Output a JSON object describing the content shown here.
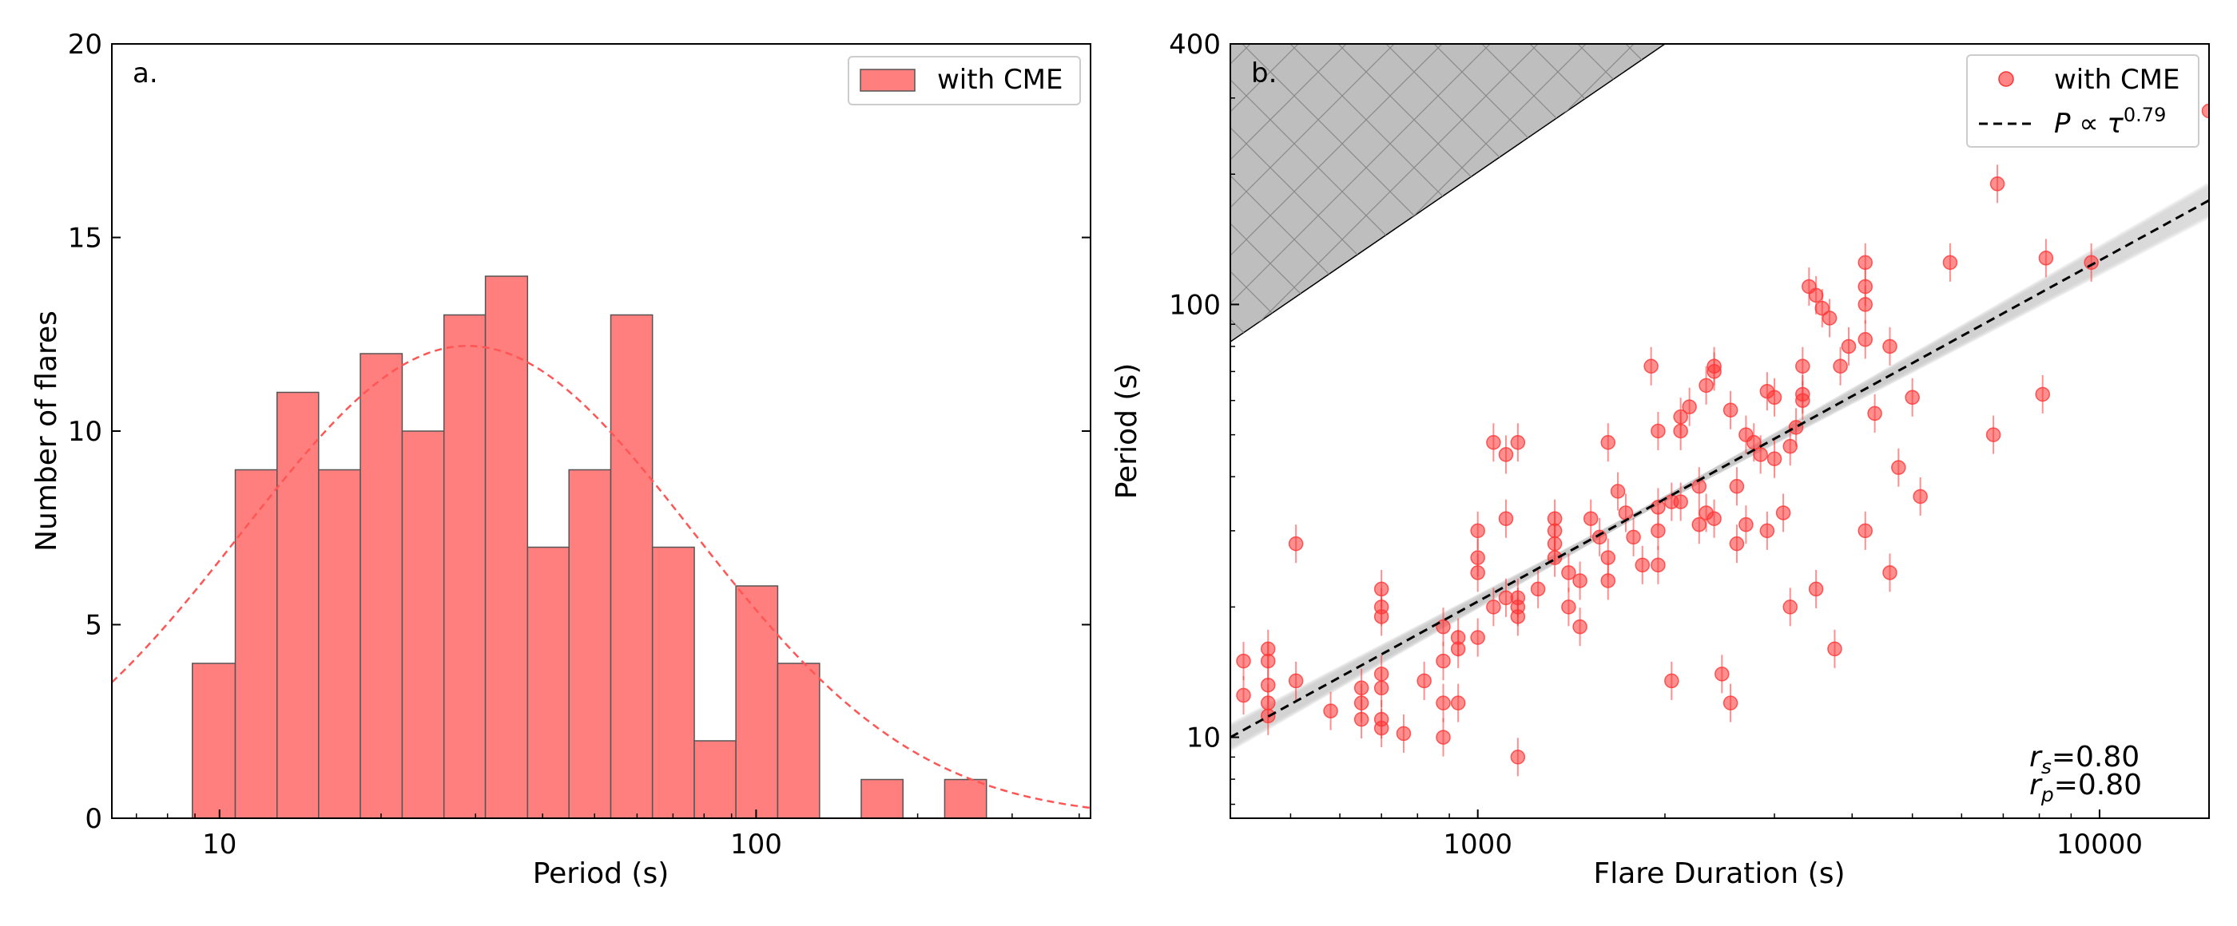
{
  "chart_data": [
    {
      "type": "bar",
      "panel_label": "a.",
      "xlabel": "Period (s)",
      "ylabel": "Number of flares",
      "xscale": "log",
      "xlim": [
        6.3,
        420
      ],
      "ylim": [
        0,
        20
      ],
      "x_ticks": [
        10,
        100
      ],
      "x_tick_labels": [
        "10",
        "100"
      ],
      "y_ticks": [
        0,
        5,
        10,
        15,
        20
      ],
      "y_tick_labels": [
        "0",
        "5",
        "10",
        "15",
        "20"
      ],
      "legend": {
        "label": "with CME",
        "placement": "top-right"
      },
      "bin_edges": [
        8.9,
        10.7,
        12.8,
        15.3,
        18.3,
        21.9,
        26.2,
        31.3,
        37.5,
        44.8,
        53.6,
        64.1,
        76.7,
        91.7,
        109.7,
        131.3,
        157.0,
        187.8,
        224.6,
        268.7,
        321.4
      ],
      "counts": [
        4,
        9,
        11,
        9,
        12,
        10,
        13,
        14,
        7,
        9,
        13,
        7,
        2,
        6,
        4,
        0,
        1,
        0,
        1,
        0
      ],
      "fit_curve": {
        "type": "lognormal",
        "peak": 12.2,
        "center": 29,
        "sigma_log10": 0.42,
        "style": "dashed"
      },
      "colors": {
        "bar": "#ff7f7f",
        "bar_edge": "#555555",
        "fit": "#ff5555"
      }
    },
    {
      "type": "scatter",
      "panel_label": "b.",
      "xlabel": "Flare Duration (s)",
      "ylabel": "Period (s)",
      "xscale": "log",
      "yscale": "log",
      "xlim": [
        400,
        15000
      ],
      "ylim": [
        6.5,
        400
      ],
      "x_ticks": [
        1000,
        10000
      ],
      "x_tick_labels": [
        "1000",
        "10000"
      ],
      "y_ticks": [
        10,
        100,
        400
      ],
      "y_tick_labels": [
        "10",
        "100",
        "400"
      ],
      "legend": {
        "marker_label": "with CME",
        "line_label": "P ∝ τ^0.79",
        "placement": "top-right"
      },
      "fit_line": {
        "exponent": 0.79,
        "points": [
          [
            400,
            10.0
          ],
          [
            15000,
            174.0
          ]
        ]
      },
      "excluded_region": {
        "boundary": [
          [
            400,
            82
          ],
          [
            2000,
            400
          ]
        ],
        "description": "gray hatched region above boundary"
      },
      "stats": {
        "rs": "0.80",
        "rp": "0.80"
      },
      "points": [
        [
          420,
          12.5
        ],
        [
          420,
          15
        ],
        [
          460,
          16
        ],
        [
          460,
          15
        ],
        [
          460,
          13.2
        ],
        [
          460,
          12
        ],
        [
          460,
          11.2
        ],
        [
          510,
          28
        ],
        [
          510,
          13.5
        ],
        [
          580,
          11.5
        ],
        [
          650,
          13
        ],
        [
          650,
          11
        ],
        [
          650,
          12
        ],
        [
          700,
          13
        ],
        [
          700,
          14
        ],
        [
          700,
          19
        ],
        [
          700,
          20
        ],
        [
          700,
          22
        ],
        [
          700,
          10.5
        ],
        [
          700,
          11
        ],
        [
          760,
          10.2
        ],
        [
          820,
          13.5
        ],
        [
          880,
          10
        ],
        [
          880,
          12
        ],
        [
          880,
          15
        ],
        [
          880,
          18
        ],
        [
          930,
          12
        ],
        [
          930,
          16
        ],
        [
          930,
          17
        ],
        [
          1000,
          24
        ],
        [
          1000,
          26
        ],
        [
          1000,
          30
        ],
        [
          1000,
          17
        ],
        [
          1060,
          48
        ],
        [
          1060,
          20
        ],
        [
          1110,
          45
        ],
        [
          1110,
          32
        ],
        [
          1110,
          21
        ],
        [
          1160,
          48
        ],
        [
          1160,
          21
        ],
        [
          1160,
          20
        ],
        [
          1160,
          19
        ],
        [
          1160,
          9
        ],
        [
          1250,
          22
        ],
        [
          1330,
          26
        ],
        [
          1330,
          28
        ],
        [
          1330,
          30
        ],
        [
          1330,
          32
        ],
        [
          1400,
          20
        ],
        [
          1400,
          24
        ],
        [
          1460,
          23
        ],
        [
          1460,
          18
        ],
        [
          1520,
          32
        ],
        [
          1570,
          29
        ],
        [
          1620,
          26
        ],
        [
          1620,
          23
        ],
        [
          1620,
          48
        ],
        [
          1680,
          37
        ],
        [
          1730,
          33
        ],
        [
          1780,
          29
        ],
        [
          1840,
          25
        ],
        [
          1900,
          72
        ],
        [
          1950,
          51
        ],
        [
          1950,
          34
        ],
        [
          1950,
          25
        ],
        [
          1950,
          30
        ],
        [
          2050,
          35
        ],
        [
          2050,
          13.5
        ],
        [
          2120,
          35
        ],
        [
          2120,
          51
        ],
        [
          2120,
          55
        ],
        [
          2190,
          58
        ],
        [
          2270,
          31
        ],
        [
          2270,
          38
        ],
        [
          2330,
          33
        ],
        [
          2330,
          65
        ],
        [
          2400,
          70
        ],
        [
          2400,
          72
        ],
        [
          2400,
          32
        ],
        [
          2470,
          14
        ],
        [
          2550,
          57
        ],
        [
          2550,
          12
        ],
        [
          2610,
          38
        ],
        [
          2610,
          28
        ],
        [
          2700,
          31
        ],
        [
          2700,
          50
        ],
        [
          2780,
          48
        ],
        [
          2850,
          45
        ],
        [
          2920,
          63
        ],
        [
          2920,
          30
        ],
        [
          3000,
          61
        ],
        [
          3000,
          44
        ],
        [
          3100,
          33
        ],
        [
          3180,
          47
        ],
        [
          3180,
          20
        ],
        [
          3250,
          52
        ],
        [
          3330,
          60
        ],
        [
          3330,
          62
        ],
        [
          3330,
          72
        ],
        [
          3410,
          110
        ],
        [
          3500,
          105
        ],
        [
          3500,
          22
        ],
        [
          3580,
          98
        ],
        [
          3680,
          93
        ],
        [
          3750,
          16
        ],
        [
          3830,
          72
        ],
        [
          3950,
          80
        ],
        [
          4200,
          83
        ],
        [
          4200,
          100
        ],
        [
          4200,
          110
        ],
        [
          4200,
          125
        ],
        [
          4200,
          30
        ],
        [
          4350,
          56
        ],
        [
          4600,
          80
        ],
        [
          4600,
          24
        ],
        [
          4750,
          42
        ],
        [
          5000,
          61
        ],
        [
          5150,
          36
        ],
        [
          5750,
          125
        ],
        [
          6750,
          50
        ],
        [
          6850,
          190
        ],
        [
          8100,
          62
        ],
        [
          8200,
          128
        ],
        [
          9700,
          125
        ],
        [
          15000,
          280
        ]
      ],
      "colors": {
        "marker": "#ff3333",
        "fit": "#000000",
        "bootstrap": "#c8c8c8",
        "region_fill": "#bebebe"
      }
    }
  ]
}
